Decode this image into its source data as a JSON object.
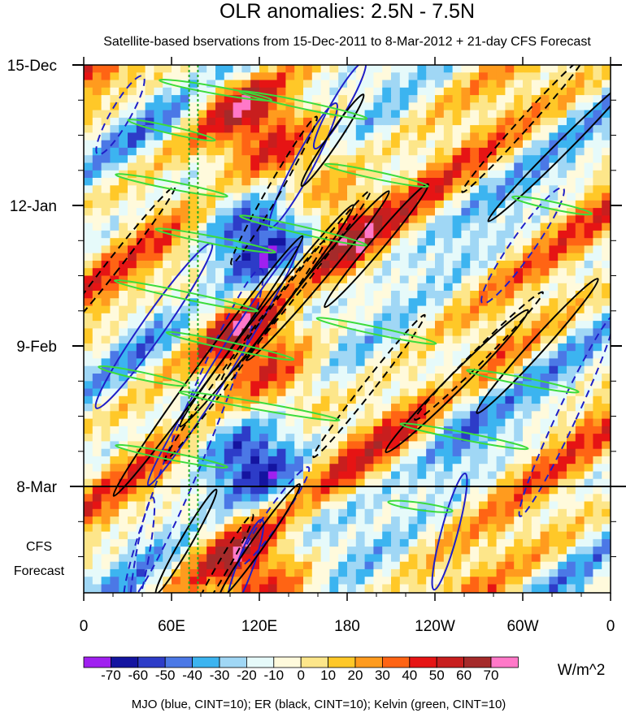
{
  "chart_data": {
    "type": "heatmap",
    "title": "OLR anomalies: 2.5N - 7.5N",
    "subtitle": "Satellite-based bservations from 15-Dec-2011 to 8-Mar-2012 + 21-day CFS Forecast",
    "x_ticks": [
      {
        "lon": 0,
        "label": "0"
      },
      {
        "lon": 60,
        "label": "60E"
      },
      {
        "lon": 120,
        "label": "120E"
      },
      {
        "lon": 180,
        "label": "180"
      },
      {
        "lon": 240,
        "label": "120W"
      },
      {
        "lon": 300,
        "label": "60W"
      },
      {
        "lon": 360,
        "label": "0"
      }
    ],
    "xlim": [
      0,
      360
    ],
    "y_ticks": [
      {
        "day": 0,
        "label": "15-Dec"
      },
      {
        "day": 28,
        "label": "12-Jan"
      },
      {
        "day": 56,
        "label": "9-Feb"
      },
      {
        "day": 84,
        "label": "8-Mar"
      }
    ],
    "ylim_days": [
      0,
      105
    ],
    "forecast_start_day": 84,
    "forecast_label_line1": "CFS",
    "forecast_label_line2": "Forecast",
    "reference_lines_lon": [
      72,
      78
    ],
    "colorbar": {
      "levels": [
        -70,
        -60,
        -50,
        -40,
        -30,
        -20,
        -10,
        0,
        10,
        20,
        30,
        40,
        50,
        60,
        70
      ],
      "labels": [
        "-70",
        "-60",
        "-50",
        "-40",
        "-30",
        "-20",
        "-10",
        "0",
        "10",
        "20",
        "30",
        "40",
        "50",
        "60",
        "70"
      ],
      "colors": [
        "#a020f0",
        "#1414a0",
        "#2d3cc8",
        "#4b78e6",
        "#3cb4f0",
        "#a0d7f5",
        "#e6fafa",
        "#fffadc",
        "#fde68a",
        "#ffc828",
        "#ff9b1e",
        "#ff6414",
        "#e61414",
        "#c81e1e",
        "#a52a2a",
        "#ff78c8"
      ],
      "units": "W/m^2"
    },
    "contour_legend": "MJO (blue, CINT=10); ER (black, CINT=10); Kelvin (green, CINT=10)",
    "series": [
      {
        "name": "MJO",
        "color": "#1f1fc8"
      },
      {
        "name": "ER",
        "color": "#000000"
      },
      {
        "name": "Kelvin",
        "color": "#3cdc3c"
      }
    ]
  }
}
